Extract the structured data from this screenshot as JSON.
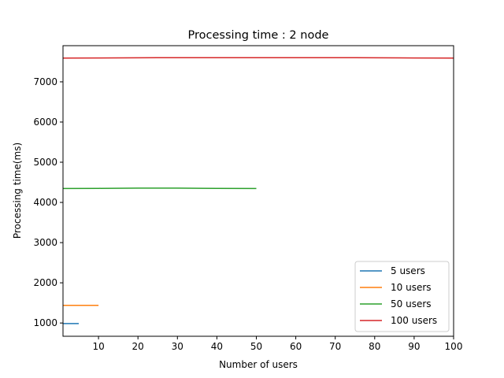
{
  "chart_data": {
    "type": "line",
    "title": "Processing time : 2 node",
    "xlabel": "Number of users",
    "ylabel": "Processing time(ms)",
    "xlim": [
      1,
      100
    ],
    "ylim": [
      670,
      7900
    ],
    "xticks": [
      10,
      20,
      30,
      40,
      50,
      60,
      70,
      80,
      90,
      100
    ],
    "yticks": [
      1000,
      2000,
      3000,
      4000,
      5000,
      6000,
      7000
    ],
    "grid": false,
    "legend_position": "lower-right",
    "series": [
      {
        "name": "5 users",
        "color": "#1f77b4",
        "x": [
          1,
          2,
          3,
          4,
          5
        ],
        "y": [
          985,
          985,
          985,
          985,
          985
        ]
      },
      {
        "name": "10 users",
        "color": "#ff7f0e",
        "x": [
          1,
          2,
          3,
          4,
          5,
          6,
          7,
          8,
          9,
          10
        ],
        "y": [
          1440,
          1440,
          1440,
          1440,
          1440,
          1440,
          1440,
          1440,
          1440,
          1440
        ]
      },
      {
        "name": "50 users",
        "color": "#2ca02c",
        "x": [
          1,
          10,
          20,
          25,
          30,
          40,
          50
        ],
        "y": [
          4345,
          4350,
          4355,
          4356,
          4355,
          4350,
          4345
        ]
      },
      {
        "name": "100 users",
        "color": "#d62728",
        "x": [
          1,
          10,
          25,
          50,
          75,
          90,
          100
        ],
        "y": [
          7590,
          7595,
          7600,
          7603,
          7600,
          7595,
          7590
        ]
      }
    ]
  }
}
